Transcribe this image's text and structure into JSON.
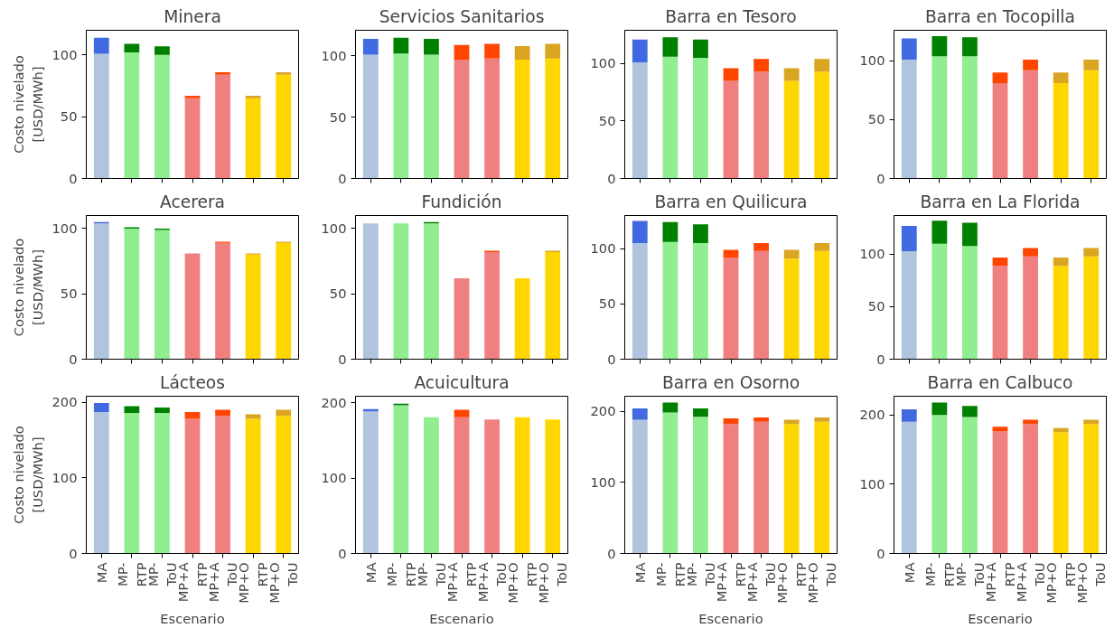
{
  "chart_data": [
    {
      "type": "bar",
      "title": "Minera",
      "stacked": true,
      "tick_labels": "y",
      "ylabel": "Costo nivelado [USD/MWh]",
      "categories": [
        "MA",
        "MP-RTP",
        "MP-ToU",
        "MP+A RTP",
        "MP+A ToU",
        "MP+O RTP",
        "MP+O ToU"
      ],
      "ylim": [
        0,
        120
      ],
      "yticks": [
        0,
        50,
        100
      ],
      "series": [
        {
          "colors": [
            "#b0c4de",
            "#90ee90",
            "#90ee90",
            "#f08080",
            "#f08080",
            "#ffd700",
            "#ffd700"
          ],
          "values": [
            101,
            102,
            100,
            65,
            84,
            65,
            84
          ]
        },
        {
          "colors": [
            "#4169e1",
            "#008000",
            "#008000",
            "#ff4500",
            "#ff4500",
            "#daa520",
            "#daa520"
          ],
          "values": [
            13,
            7,
            7,
            2,
            2,
            2,
            2
          ]
        }
      ]
    },
    {
      "type": "bar",
      "title": "Servicios Sanitarios",
      "stacked": true,
      "tick_labels": "y",
      "categories": [
        "MA",
        "MP-RTP",
        "MP-ToU",
        "MP+A RTP",
        "MP+A ToU",
        "MP+O RTP",
        "MP+O ToU"
      ],
      "ylim": [
        0,
        121
      ],
      "yticks": [
        0,
        50,
        100
      ],
      "series": [
        {
          "colors": [
            "#b0c4de",
            "#90ee90",
            "#90ee90",
            "#f08080",
            "#f08080",
            "#ffd700",
            "#ffd700"
          ],
          "values": [
            101,
            102,
            101,
            97,
            98,
            97,
            98
          ]
        },
        {
          "colors": [
            "#4169e1",
            "#008000",
            "#008000",
            "#ff4500",
            "#ff4500",
            "#daa520",
            "#daa520"
          ],
          "values": [
            13,
            13,
            13,
            12,
            12,
            11,
            12
          ]
        }
      ]
    },
    {
      "type": "bar",
      "title": "Barra en Tesoro",
      "stacked": true,
      "tick_labels": "y",
      "categories": [
        "MA",
        "MP-RTP",
        "MP-ToU",
        "MP+A RTP",
        "MP+A ToU",
        "MP+O RTP",
        "MP+O ToU"
      ],
      "ylim": [
        0,
        129
      ],
      "yticks": [
        0,
        50,
        100
      ],
      "series": [
        {
          "colors": [
            "#b0c4de",
            "#90ee90",
            "#90ee90",
            "#f08080",
            "#f08080",
            "#ffd700",
            "#ffd700"
          ],
          "values": [
            101,
            106,
            105,
            85,
            93,
            85,
            93
          ]
        },
        {
          "colors": [
            "#4169e1",
            "#008000",
            "#008000",
            "#ff4500",
            "#ff4500",
            "#daa520",
            "#daa520"
          ],
          "values": [
            20,
            17,
            16,
            11,
            11,
            11,
            11
          ]
        }
      ]
    },
    {
      "type": "bar",
      "title": "Barra en Tocopilla",
      "stacked": true,
      "tick_labels": "y",
      "categories": [
        "MA",
        "MP-RTP",
        "MP-ToU",
        "MP+A RTP",
        "MP+A ToU",
        "MP+O RTP",
        "MP+O ToU"
      ],
      "ylim": [
        0,
        126
      ],
      "yticks": [
        0,
        50,
        100
      ],
      "series": [
        {
          "colors": [
            "#b0c4de",
            "#90ee90",
            "#90ee90",
            "#f08080",
            "#f08080",
            "#ffd700",
            "#ffd700"
          ],
          "values": [
            101,
            104,
            104,
            81,
            92,
            81,
            92
          ]
        },
        {
          "colors": [
            "#4169e1",
            "#008000",
            "#008000",
            "#ff4500",
            "#ff4500",
            "#daa520",
            "#daa520"
          ],
          "values": [
            18,
            17,
            16,
            9,
            9,
            9,
            9
          ]
        }
      ]
    },
    {
      "type": "bar",
      "title": "Acerera",
      "stacked": true,
      "tick_labels": "y",
      "ylabel": "Costo nivelado [USD/MWh]",
      "categories": [
        "MA",
        "MP-RTP",
        "MP-ToU",
        "MP+A RTP",
        "MP+A ToU",
        "MP+O RTP",
        "MP+O ToU"
      ],
      "ylim": [
        0,
        110
      ],
      "yticks": [
        0,
        50,
        100
      ],
      "series": [
        {
          "colors": [
            "#b0c4de",
            "#90ee90",
            "#90ee90",
            "#f08080",
            "#f08080",
            "#ffd700",
            "#ffd700"
          ],
          "values": [
            104,
            100,
            99,
            81,
            89,
            80,
            89
          ]
        },
        {
          "colors": [
            "#4169e1",
            "#008000",
            "#008000",
            "#ff4500",
            "#ff4500",
            "#daa520",
            "#daa520"
          ],
          "values": [
            1,
            1,
            1,
            null,
            1,
            1,
            1
          ]
        }
      ]
    },
    {
      "type": "bar",
      "title": "Fundición",
      "stacked": true,
      "tick_labels": "y",
      "categories": [
        "MA",
        "MP-RTP",
        "MP-ToU",
        "MP+A RTP",
        "MP+A ToU",
        "MP+O RTP",
        "MP+O ToU"
      ],
      "ylim": [
        0,
        110
      ],
      "yticks": [
        0,
        50,
        100
      ],
      "series": [
        {
          "colors": [
            "#b0c4de",
            "#90ee90",
            "#90ee90",
            "#f08080",
            "#f08080",
            "#ffd700",
            "#ffd700"
          ],
          "values": [
            104,
            104,
            104,
            62,
            82,
            62,
            82
          ]
        },
        {
          "colors": [
            "#4169e1",
            "#008000",
            "#008000",
            "#ff4500",
            "#ff4500",
            "#daa520",
            "#daa520"
          ],
          "values": [
            null,
            null,
            1,
            null,
            1,
            null,
            1
          ]
        }
      ]
    },
    {
      "type": "bar",
      "title": "Barra en Quilicura",
      "stacked": true,
      "tick_labels": "y",
      "categories": [
        "MA",
        "MP-RTP",
        "MP-ToU",
        "MP+A RTP",
        "MP+A ToU",
        "MP+O RTP",
        "MP+O ToU"
      ],
      "ylim": [
        0,
        130
      ],
      "yticks": [
        0,
        50,
        100
      ],
      "series": [
        {
          "colors": [
            "#b0c4de",
            "#90ee90",
            "#90ee90",
            "#f08080",
            "#f08080",
            "#ffd700",
            "#ffd700"
          ],
          "values": [
            105,
            106,
            105,
            92,
            98,
            91,
            98
          ]
        },
        {
          "colors": [
            "#4169e1",
            "#008000",
            "#008000",
            "#ff4500",
            "#ff4500",
            "#daa520",
            "#daa520"
          ],
          "values": [
            20,
            18,
            17,
            7,
            7,
            8,
            7
          ]
        }
      ]
    },
    {
      "type": "bar",
      "title": "Barra en La Florida",
      "stacked": true,
      "tick_labels": "y",
      "categories": [
        "MA",
        "MP-RTP",
        "MP-ToU",
        "MP+A RTP",
        "MP+A ToU",
        "MP+O RTP",
        "MP+O ToU"
      ],
      "ylim": [
        0,
        137
      ],
      "yticks": [
        0,
        50,
        100
      ],
      "series": [
        {
          "colors": [
            "#b0c4de",
            "#90ee90",
            "#90ee90",
            "#f08080",
            "#f08080",
            "#ffd700",
            "#ffd700"
          ],
          "values": [
            103,
            110,
            108,
            89,
            98,
            89,
            98
          ]
        },
        {
          "colors": [
            "#4169e1",
            "#008000",
            "#008000",
            "#ff4500",
            "#ff4500",
            "#daa520",
            "#daa520"
          ],
          "values": [
            24,
            22,
            22,
            8,
            8,
            8,
            8
          ]
        }
      ]
    },
    {
      "type": "bar",
      "title": "Lácteos",
      "stacked": true,
      "xlabel": "Escenario",
      "ylabel": "Costo nivelado [USD/MWh]",
      "categories": [
        "MA",
        "MP-RTP",
        "MP-ToU",
        "MP+A RTP",
        "MP+A ToU",
        "MP+O RTP",
        "MP+O ToU"
      ],
      "ylim": [
        0,
        208
      ],
      "yticks": [
        0,
        100,
        200
      ],
      "series": [
        {
          "colors": [
            "#b0c4de",
            "#90ee90",
            "#90ee90",
            "#f08080",
            "#f08080",
            "#ffd700",
            "#ffd700"
          ],
          "values": [
            187,
            186,
            186,
            178,
            182,
            178,
            182
          ]
        },
        {
          "colors": [
            "#4169e1",
            "#008000",
            "#008000",
            "#ff4500",
            "#ff4500",
            "#daa520",
            "#daa520"
          ],
          "values": [
            12,
            9,
            7,
            9,
            8,
            6,
            8
          ]
        }
      ]
    },
    {
      "type": "bar",
      "title": "Acuicultura",
      "stacked": true,
      "xlabel": "Escenario",
      "categories": [
        "MA",
        "MP-RTP",
        "MP-ToU",
        "MP+A RTP",
        "MP+A ToU",
        "MP+O RTP",
        "MP+O ToU"
      ],
      "ylim": [
        0,
        209
      ],
      "yticks": [
        0,
        100,
        200
      ],
      "series": [
        {
          "colors": [
            "#b0c4de",
            "#90ee90",
            "#90ee90",
            "#f08080",
            "#f08080",
            "#ffd700",
            "#ffd700"
          ],
          "values": [
            189,
            197,
            181,
            181,
            178,
            181,
            178
          ]
        },
        {
          "colors": [
            "#4169e1",
            "#008000",
            "#008000",
            "#ff4500",
            "#ff4500",
            "#daa520",
            "#daa520"
          ],
          "values": [
            3,
            2,
            null,
            10,
            null,
            null,
            null
          ]
        }
      ]
    },
    {
      "type": "bar",
      "title": "Barra en Osorno",
      "stacked": true,
      "xlabel": "Escenario",
      "categories": [
        "MA",
        "MP-RTP",
        "MP-ToU",
        "MP+A RTP",
        "MP+A ToU",
        "MP+O RTP",
        "MP+O ToU"
      ],
      "ylim": [
        0,
        221
      ],
      "yticks": [
        0,
        100,
        200
      ],
      "series": [
        {
          "colors": [
            "#b0c4de",
            "#90ee90",
            "#90ee90",
            "#f08080",
            "#f08080",
            "#ffd700",
            "#ffd700"
          ],
          "values": [
            188,
            198,
            192,
            182,
            185,
            182,
            185
          ]
        },
        {
          "colors": [
            "#4169e1",
            "#008000",
            "#008000",
            "#ff4500",
            "#ff4500",
            "#daa520",
            "#daa520"
          ],
          "values": [
            16,
            14,
            12,
            8,
            6,
            6,
            6
          ]
        }
      ]
    },
    {
      "type": "bar",
      "title": "Barra en Calbuco",
      "stacked": true,
      "xlabel": "Escenario",
      "categories": [
        "MA",
        "MP-RTP",
        "MP-ToU",
        "MP+A RTP",
        "MP+A ToU",
        "MP+O RTP",
        "MP+O ToU"
      ],
      "ylim": [
        0,
        227
      ],
      "yticks": [
        0,
        100,
        200
      ],
      "series": [
        {
          "colors": [
            "#b0c4de",
            "#90ee90",
            "#90ee90",
            "#f08080",
            "#f08080",
            "#ffd700",
            "#ffd700"
          ],
          "values": [
            190,
            200,
            197,
            176,
            187,
            175,
            187
          ]
        },
        {
          "colors": [
            "#4169e1",
            "#008000",
            "#008000",
            "#ff4500",
            "#ff4500",
            "#daa520",
            "#daa520"
          ],
          "values": [
            18,
            18,
            16,
            7,
            6,
            6,
            6
          ]
        }
      ]
    }
  ]
}
